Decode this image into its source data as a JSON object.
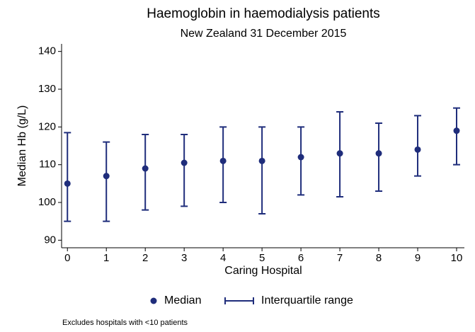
{
  "chart_data": {
    "type": "median-iqr",
    "title": "Haemoglobin in haemodialysis patients",
    "subtitle": "New Zealand 31 December 2015",
    "x_label": "Caring Hospital",
    "y_label": "Median Hb (g/L)",
    "x": [
      0,
      1,
      2,
      3,
      4,
      5,
      6,
      7,
      8,
      9,
      10
    ],
    "series": [
      {
        "name": "Median",
        "color": "#1f2d7b",
        "values": [
          105,
          107,
          109,
          110.5,
          111,
          111,
          112,
          113,
          113,
          114,
          119
        ]
      },
      {
        "name": "Interquartile range",
        "color": "#1f2d7b",
        "low": [
          95,
          95,
          98,
          99,
          100,
          97,
          102,
          101.5,
          103,
          107,
          110
        ],
        "high": [
          118.5,
          116,
          118,
          118,
          120,
          120,
          120,
          124,
          121,
          123,
          125
        ]
      }
    ],
    "xlim": [
      -0.15,
      10.2
    ],
    "ylim": [
      88,
      142
    ],
    "xticks": [
      0,
      1,
      2,
      3,
      4,
      5,
      6,
      7,
      8,
      9,
      10
    ],
    "yticks": [
      90,
      100,
      110,
      120,
      130,
      140
    ],
    "legend": "bottom",
    "note": "Excludes hospitals with <10 patients"
  }
}
